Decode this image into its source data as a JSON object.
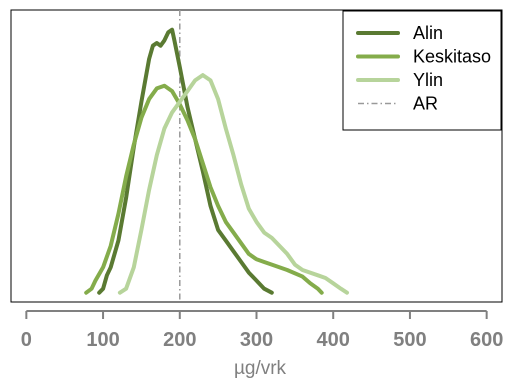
{
  "chart_data": {
    "type": "line",
    "title": "",
    "xlabel": "µg/vrk",
    "ylabel": "",
    "xlim": [
      -20,
      620
    ],
    "ylim": [
      0,
      1.0
    ],
    "x_ticks": [
      0,
      100,
      200,
      300,
      400,
      500,
      600
    ],
    "grid": false,
    "legend_position": "top-right",
    "series": [
      {
        "name": "Alin",
        "color": "#5a7a32",
        "points": [
          [
            95,
            0.005
          ],
          [
            100,
            0.02
          ],
          [
            105,
            0.07
          ],
          [
            110,
            0.1
          ],
          [
            120,
            0.2
          ],
          [
            130,
            0.36
          ],
          [
            140,
            0.55
          ],
          [
            150,
            0.72
          ],
          [
            160,
            0.88
          ],
          [
            165,
            0.93
          ],
          [
            170,
            0.94
          ],
          [
            175,
            0.93
          ],
          [
            180,
            0.95
          ],
          [
            185,
            0.98
          ],
          [
            190,
            0.99
          ],
          [
            193,
            0.95
          ],
          [
            200,
            0.85
          ],
          [
            210,
            0.7
          ],
          [
            220,
            0.58
          ],
          [
            230,
            0.46
          ],
          [
            240,
            0.33
          ],
          [
            250,
            0.24
          ],
          [
            260,
            0.2
          ],
          [
            270,
            0.16
          ],
          [
            280,
            0.12
          ],
          [
            290,
            0.08
          ],
          [
            300,
            0.05
          ],
          [
            310,
            0.02
          ],
          [
            320,
            0.005
          ]
        ]
      },
      {
        "name": "Keskitaso",
        "color": "#84ac4b",
        "points": [
          [
            78,
            0.005
          ],
          [
            85,
            0.02
          ],
          [
            90,
            0.05
          ],
          [
            100,
            0.1
          ],
          [
            110,
            0.18
          ],
          [
            120,
            0.3
          ],
          [
            130,
            0.44
          ],
          [
            140,
            0.56
          ],
          [
            150,
            0.66
          ],
          [
            160,
            0.73
          ],
          [
            170,
            0.77
          ],
          [
            180,
            0.78
          ],
          [
            190,
            0.76
          ],
          [
            200,
            0.71
          ],
          [
            210,
            0.65
          ],
          [
            220,
            0.58
          ],
          [
            230,
            0.49
          ],
          [
            240,
            0.4
          ],
          [
            250,
            0.33
          ],
          [
            260,
            0.27
          ],
          [
            270,
            0.23
          ],
          [
            280,
            0.19
          ],
          [
            290,
            0.15
          ],
          [
            300,
            0.13
          ],
          [
            310,
            0.12
          ],
          [
            320,
            0.11
          ],
          [
            340,
            0.09
          ],
          [
            360,
            0.065
          ],
          [
            370,
            0.04
          ],
          [
            380,
            0.02
          ],
          [
            385,
            0.005
          ]
        ]
      },
      {
        "name": "Ylin",
        "color": "#b7d49b",
        "points": [
          [
            122,
            0.005
          ],
          [
            130,
            0.02
          ],
          [
            140,
            0.1
          ],
          [
            150,
            0.24
          ],
          [
            160,
            0.39
          ],
          [
            170,
            0.52
          ],
          [
            180,
            0.62
          ],
          [
            190,
            0.68
          ],
          [
            200,
            0.72
          ],
          [
            210,
            0.76
          ],
          [
            220,
            0.8
          ],
          [
            230,
            0.82
          ],
          [
            240,
            0.8
          ],
          [
            250,
            0.73
          ],
          [
            260,
            0.62
          ],
          [
            270,
            0.52
          ],
          [
            280,
            0.41
          ],
          [
            290,
            0.32
          ],
          [
            300,
            0.27
          ],
          [
            310,
            0.23
          ],
          [
            320,
            0.21
          ],
          [
            330,
            0.18
          ],
          [
            340,
            0.15
          ],
          [
            350,
            0.11
          ],
          [
            360,
            0.09
          ],
          [
            380,
            0.07
          ],
          [
            390,
            0.06
          ],
          [
            400,
            0.04
          ],
          [
            410,
            0.02
          ],
          [
            418,
            0.005
          ]
        ]
      }
    ],
    "reference_line": {
      "name": "AR",
      "x": 200,
      "color": "#999999"
    }
  }
}
